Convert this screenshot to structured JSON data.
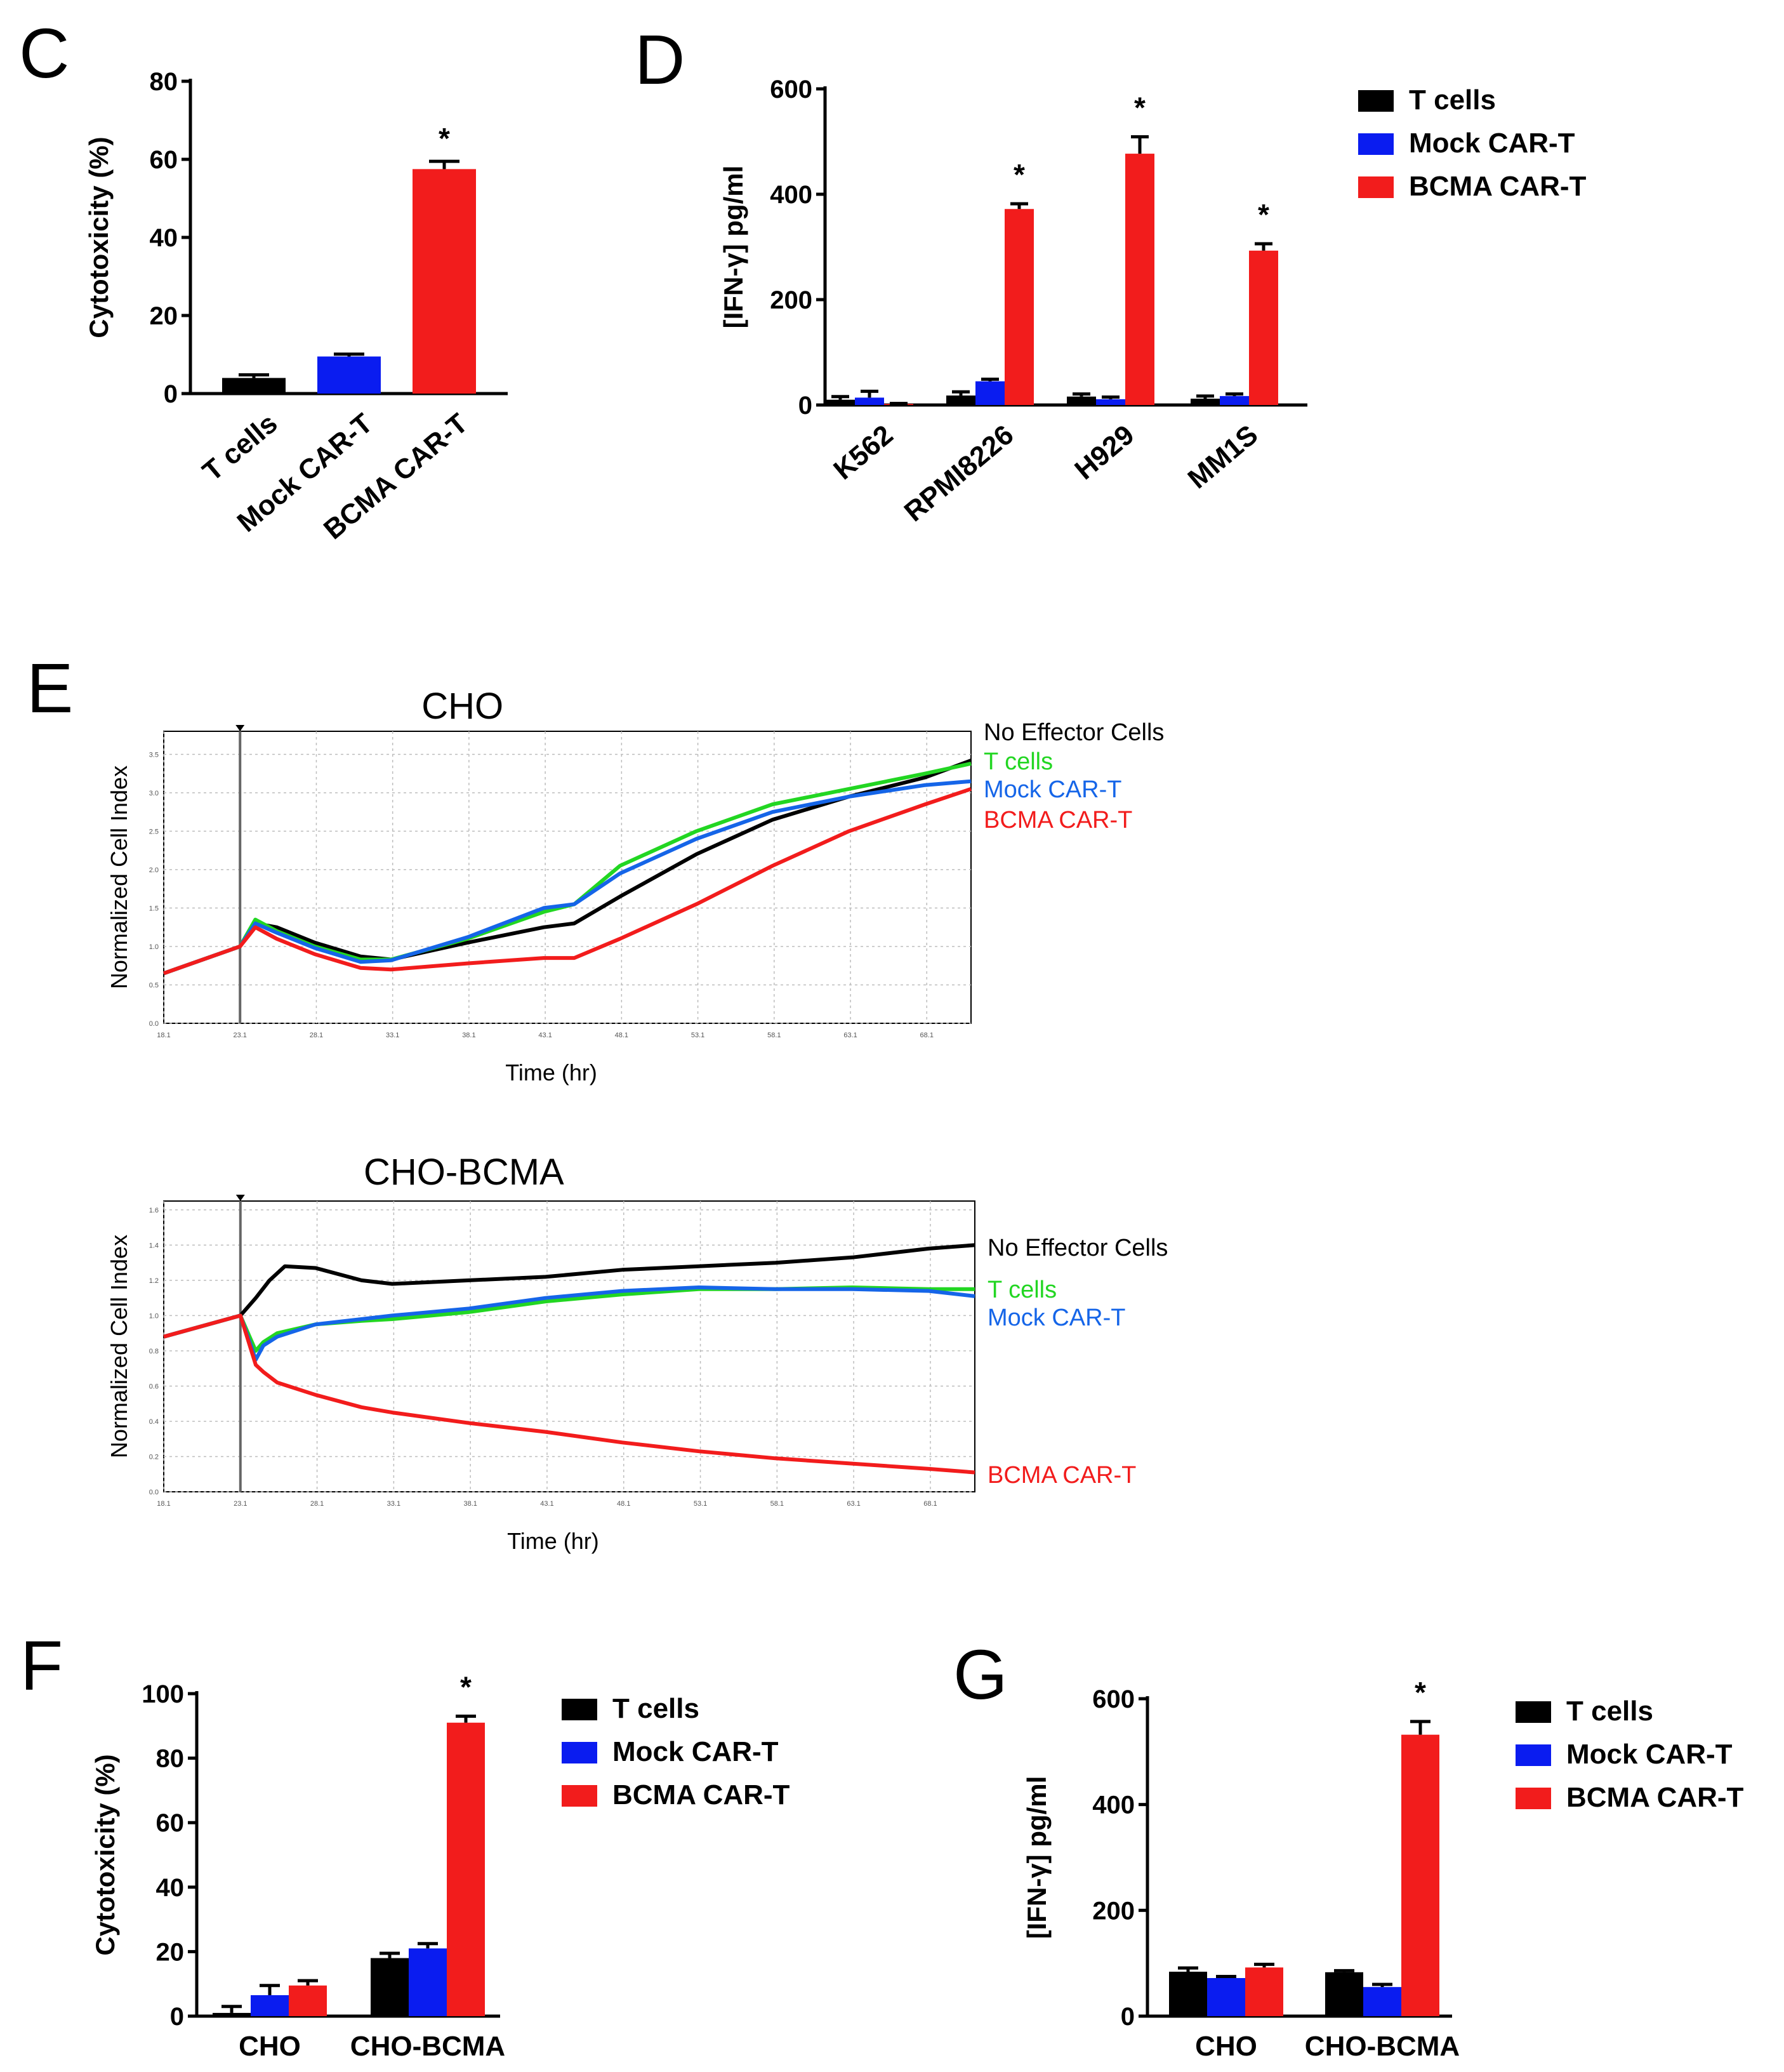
{
  "panels": {
    "C": "C",
    "D": "D",
    "E": "E",
    "F": "F",
    "G": "G"
  },
  "series_names": [
    "T cells",
    "Mock CAR-T",
    "BCMA CAR-T"
  ],
  "colors": {
    "t_cells": "#000000",
    "mock": "#0a1cf0",
    "bcma": "#f21c1c",
    "rt_tcells": "#22d622",
    "rt_mock": "#1565e8",
    "rt_bcma": "#f21c1c",
    "rt_noeff": "#000000"
  },
  "chart_data": [
    {
      "id": "C",
      "type": "bar",
      "title": "",
      "ylabel": "Cytotoxicity (%)",
      "ylim": [
        0,
        80
      ],
      "yticks": [
        "0",
        "20",
        "40",
        "60",
        "80"
      ],
      "categories": [
        "T cells",
        "Mock CAR-T",
        "BCMA CAR-T"
      ],
      "values": [
        4,
        9.5,
        57.5
      ],
      "errors": [
        0.8,
        0.6,
        2
      ],
      "significance": [
        "",
        "",
        "*"
      ]
    },
    {
      "id": "D",
      "type": "bar",
      "ylabel": "[IFN-γ] pg/ml",
      "ylim": [
        0,
        600
      ],
      "yticks": [
        "0",
        "200",
        "400",
        "600"
      ],
      "categories": [
        "K562",
        "RPMI8226",
        "H929",
        "MM1S"
      ],
      "series": [
        {
          "name": "T cells",
          "values": [
            10,
            18,
            16,
            12
          ],
          "errors": [
            6,
            7,
            5,
            5
          ]
        },
        {
          "name": "Mock CAR-T",
          "values": [
            14,
            45,
            11,
            17
          ],
          "errors": [
            12,
            4,
            4,
            4
          ]
        },
        {
          "name": "BCMA CAR-T",
          "values": [
            2,
            372,
            477,
            293
          ],
          "errors": [
            1,
            10,
            32,
            13
          ]
        }
      ],
      "significance": [
        "",
        "*",
        "*",
        "*"
      ],
      "legend": [
        "T cells",
        "Mock CAR-T",
        "BCMA CAR-T"
      ]
    },
    {
      "id": "E1",
      "type": "line",
      "title": "CHO",
      "xlabel": "Time (hr)",
      "ylabel": "Normalized Cell Index",
      "xlim": [
        18.1,
        71
      ],
      "ylim": [
        0,
        3.8
      ],
      "xticks": [
        "18.1",
        "23.1",
        "28.1",
        "33.1",
        "38.1",
        "43.1",
        "48.1",
        "53.1",
        "58.1",
        "63.1",
        "68.1"
      ],
      "yticks": [
        "0.0",
        "0.5",
        "1.0",
        "1.5",
        "2.0",
        "2.5",
        "3.0",
        "3.5"
      ],
      "series": [
        {
          "name": "No Effector Cells",
          "x": [
            18.1,
            23.1,
            24.1,
            25.5,
            28,
            31,
            33,
            38,
            43,
            45,
            48,
            53,
            58,
            63,
            68,
            71
          ],
          "y": [
            0.65,
            1.0,
            1.3,
            1.25,
            1.05,
            0.87,
            0.83,
            1.05,
            1.25,
            1.3,
            1.65,
            2.2,
            2.65,
            2.95,
            3.2,
            3.42
          ]
        },
        {
          "name": "T cells",
          "x": [
            18.1,
            23.1,
            24.1,
            25.5,
            28,
            31,
            33,
            38,
            43,
            45,
            48,
            53,
            58,
            63,
            68,
            71
          ],
          "y": [
            0.65,
            1.0,
            1.35,
            1.2,
            1.0,
            0.83,
            0.83,
            1.1,
            1.45,
            1.55,
            2.05,
            2.5,
            2.85,
            3.05,
            3.25,
            3.38
          ]
        },
        {
          "name": "Mock CAR-T",
          "x": [
            18.1,
            23.1,
            24.1,
            25.5,
            28,
            31,
            33,
            38,
            43,
            45,
            48,
            53,
            58,
            63,
            68,
            71
          ],
          "y": [
            0.65,
            1.0,
            1.3,
            1.18,
            0.98,
            0.8,
            0.82,
            1.12,
            1.5,
            1.55,
            1.95,
            2.4,
            2.75,
            2.95,
            3.1,
            3.15
          ]
        },
        {
          "name": "BCMA CAR-T",
          "x": [
            18.1,
            23.1,
            24.1,
            25.5,
            28,
            31,
            33,
            38,
            43,
            45,
            48,
            53,
            58,
            63,
            68,
            71
          ],
          "y": [
            0.65,
            1.0,
            1.25,
            1.1,
            0.9,
            0.72,
            0.7,
            0.78,
            0.85,
            0.85,
            1.1,
            1.55,
            2.05,
            2.5,
            2.85,
            3.05
          ]
        }
      ]
    },
    {
      "id": "E2",
      "type": "line",
      "title": "CHO-BCMA",
      "xlabel": "Time (hr)",
      "ylabel": "Normalized Cell Index",
      "xlim": [
        18.1,
        71
      ],
      "ylim": [
        0,
        1.65
      ],
      "xticks": [
        "18.1",
        "23.1",
        "28.1",
        "33.1",
        "38.1",
        "43.1",
        "48.1",
        "53.1",
        "58.1",
        "63.1",
        "68.1"
      ],
      "yticks": [
        "0.0",
        "0.2",
        "0.4",
        "0.6",
        "0.8",
        "1.0",
        "1.2",
        "1.4",
        "1.6"
      ],
      "series": [
        {
          "name": "No Effector Cells",
          "x": [
            18.1,
            23.1,
            24.1,
            25,
            26,
            28,
            31,
            33,
            38,
            43,
            48,
            53,
            58,
            63,
            68,
            71
          ],
          "y": [
            0.88,
            1.0,
            1.1,
            1.2,
            1.28,
            1.27,
            1.2,
            1.18,
            1.2,
            1.22,
            1.26,
            1.28,
            1.3,
            1.33,
            1.38,
            1.4
          ]
        },
        {
          "name": "T cells",
          "x": [
            18.1,
            23.1,
            24.1,
            24.6,
            25.5,
            28,
            31,
            33,
            38,
            43,
            48,
            53,
            58,
            63,
            68,
            71
          ],
          "y": [
            0.88,
            1.0,
            0.8,
            0.85,
            0.9,
            0.95,
            0.97,
            0.98,
            1.02,
            1.08,
            1.12,
            1.15,
            1.15,
            1.16,
            1.15,
            1.15
          ]
        },
        {
          "name": "Mock CAR-T",
          "x": [
            18.1,
            23.1,
            24.1,
            24.6,
            25.5,
            28,
            31,
            33,
            38,
            43,
            48,
            53,
            58,
            63,
            68,
            71
          ],
          "y": [
            0.88,
            1.0,
            0.75,
            0.83,
            0.88,
            0.95,
            0.98,
            1.0,
            1.04,
            1.1,
            1.14,
            1.16,
            1.15,
            1.15,
            1.14,
            1.11
          ]
        },
        {
          "name": "BCMA CAR-T",
          "x": [
            18.1,
            23.1,
            24.1,
            24.6,
            25.5,
            28,
            31,
            33,
            38,
            43,
            48,
            53,
            58,
            63,
            68,
            71
          ],
          "y": [
            0.88,
            1.0,
            0.72,
            0.68,
            0.62,
            0.55,
            0.48,
            0.45,
            0.39,
            0.34,
            0.28,
            0.23,
            0.19,
            0.16,
            0.13,
            0.11
          ]
        }
      ]
    },
    {
      "id": "F",
      "type": "bar",
      "ylabel": "Cytotoxicity (%)",
      "ylim": [
        0,
        100
      ],
      "yticks": [
        "0",
        "20",
        "40",
        "60",
        "80",
        "100"
      ],
      "categories": [
        "CHO",
        "CHO-BCMA"
      ],
      "series": [
        {
          "name": "T cells",
          "values": [
            1,
            18
          ],
          "errors": [
            2,
            1.5
          ]
        },
        {
          "name": "Mock CAR-T",
          "values": [
            6.5,
            21
          ],
          "errors": [
            3,
            1.5
          ]
        },
        {
          "name": "BCMA CAR-T",
          "values": [
            9.5,
            91
          ],
          "errors": [
            1.5,
            2
          ]
        }
      ],
      "significance": [
        "",
        "*"
      ],
      "legend": [
        "T cells",
        "Mock CAR-T",
        "BCMA CAR-T"
      ]
    },
    {
      "id": "G",
      "type": "bar",
      "ylabel": "[IFN-γ] pg/ml",
      "ylim": [
        0,
        600
      ],
      "yticks": [
        "0",
        "200",
        "400",
        "600"
      ],
      "categories": [
        "CHO",
        "CHO-BCMA"
      ],
      "series": [
        {
          "name": "T cells",
          "values": [
            84,
            83
          ],
          "errors": [
            7,
            3
          ]
        },
        {
          "name": "Mock CAR-T",
          "values": [
            72,
            55
          ],
          "errors": [
            3,
            5
          ]
        },
        {
          "name": "BCMA CAR-T",
          "values": [
            92,
            532
          ],
          "errors": [
            6,
            25
          ]
        }
      ],
      "significance": [
        "",
        "*"
      ],
      "legend": [
        "T cells",
        "Mock CAR-T",
        "BCMA CAR-T"
      ]
    }
  ]
}
